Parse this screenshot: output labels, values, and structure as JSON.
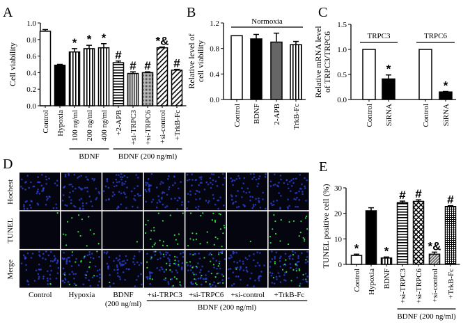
{
  "panels": {
    "A": "A",
    "B": "B",
    "C": "C",
    "D": "D",
    "E": "E"
  },
  "chart_data": [
    {
      "id": "A",
      "type": "bar",
      "ylabel": "Cell viability",
      "ylim": [
        0,
        1.0
      ],
      "ticks": [
        "0.0",
        "0.2",
        "0.4",
        "0.6",
        "0.8",
        "1.0"
      ],
      "tick_values": [
        0,
        0.2,
        0.4,
        0.6,
        0.8,
        1.0
      ],
      "categories": [
        "Control",
        "Hypoxia",
        "100 ng/ml",
        "200 ng/ml",
        "400 ng/ml",
        "+2-APB",
        "+si-TRPC3",
        "+si-TRPC6",
        "+si-control",
        "+TrkB-Fc"
      ],
      "values": [
        0.9,
        0.49,
        0.65,
        0.69,
        0.7,
        0.52,
        0.39,
        0.4,
        0.7,
        0.43
      ],
      "errors": [
        0.02,
        0.01,
        0.04,
        0.04,
        0.05,
        0.02,
        0.02,
        0.01,
        0.01,
        0.01
      ],
      "fills": [
        "white",
        "black",
        "vstripe",
        "vstripe",
        "vstripe",
        "hstripe",
        "vstripe2",
        "dots",
        "diag",
        "diag"
      ],
      "annotations": [
        "",
        "",
        "*",
        "*",
        "*",
        "#",
        "#",
        "#",
        "*&",
        "#"
      ],
      "groups": [
        {
          "label": "BDNF",
          "from": 2,
          "to": 4
        },
        {
          "label": "BDNF (200 ng/ml)",
          "from": 5,
          "to": 9
        }
      ]
    },
    {
      "id": "B",
      "type": "bar",
      "ylabel": "Relative level of",
      "ylabel2": "cell viability",
      "ylim": [
        0,
        1.2
      ],
      "ticks": [
        "0.0",
        "0.4",
        "0.8",
        "1.2"
      ],
      "tick_values": [
        0,
        0.4,
        0.8,
        1.2
      ],
      "categories": [
        "Control",
        "BDNF",
        "2-APB",
        "TrkB-Fc"
      ],
      "values": [
        1.0,
        0.95,
        0.9,
        0.86
      ],
      "errors": [
        0,
        0.07,
        0.14,
        0.05
      ],
      "fills": [
        "white",
        "black",
        "gray",
        "vstripe"
      ],
      "annotations": [
        "",
        "",
        "",
        ""
      ],
      "top_group": "Normoxia"
    },
    {
      "id": "C",
      "type": "bar",
      "ylabel": "Relative mRNA level",
      "ylabel2": "of TRPC3/TRPC6",
      "ylim": [
        0,
        1.5
      ],
      "ticks": [
        "0.0",
        "0.5",
        "1.0",
        "1.5"
      ],
      "tick_values": [
        0,
        0.5,
        1.0,
        1.5
      ],
      "categories": [
        "Control",
        "SiRNA",
        "Control",
        "SiRNA"
      ],
      "values": [
        1.0,
        0.41,
        1.0,
        0.15
      ],
      "errors": [
        0,
        0.08,
        0,
        0.01
      ],
      "fills": [
        "white",
        "black",
        "white",
        "black"
      ],
      "annotations": [
        "",
        "*",
        "",
        "*"
      ],
      "top_groups": [
        {
          "label": "TRPC3",
          "from": 0,
          "to": 1
        },
        {
          "label": "TRPC6",
          "from": 2,
          "to": 3
        }
      ]
    },
    {
      "id": "E",
      "type": "bar",
      "ylabel": "TUNEL positive cell (%)",
      "ylim": [
        0,
        30
      ],
      "ticks": [
        "0",
        "10",
        "20",
        "30"
      ],
      "tick_values": [
        0,
        10,
        20,
        30
      ],
      "categories": [
        "Control",
        "Hypoxia",
        "BDNF",
        "+si-TRPC3",
        "+si-TRPC6",
        "+si-control",
        "+TrkB-Fc"
      ],
      "values": [
        3.5,
        21.0,
        2.5,
        24.2,
        24.7,
        4.0,
        22.7
      ],
      "errors": [
        0.5,
        1.2,
        0.4,
        0.6,
        0.6,
        0.8,
        0.3
      ],
      "fills": [
        "white",
        "black",
        "vstripe",
        "hstripe",
        "cross",
        "diaggray",
        "grid"
      ],
      "annotations": [
        "*",
        "",
        "*",
        "#",
        "#",
        "*&",
        "#"
      ],
      "groups": [
        {
          "label": "BDNF (200 ng/ml)",
          "from": 3,
          "to": 6
        }
      ]
    }
  ],
  "microscopy": {
    "rows": [
      "Hochest",
      "TUNEL",
      "Merge"
    ],
    "columns": [
      "Control",
      "Hypoxia",
      "BDNF",
      "+si-TRPC3",
      "+si-TRPC6",
      "+si-control",
      "+TrkB-Fc"
    ],
    "column_sublabel": "(200 ng/ml)",
    "group": "BDNF (200 ng/ml)",
    "colors": {
      "nuclei": "#2a3fd0",
      "tunel": "#33dd44",
      "background": "#050510"
    }
  }
}
